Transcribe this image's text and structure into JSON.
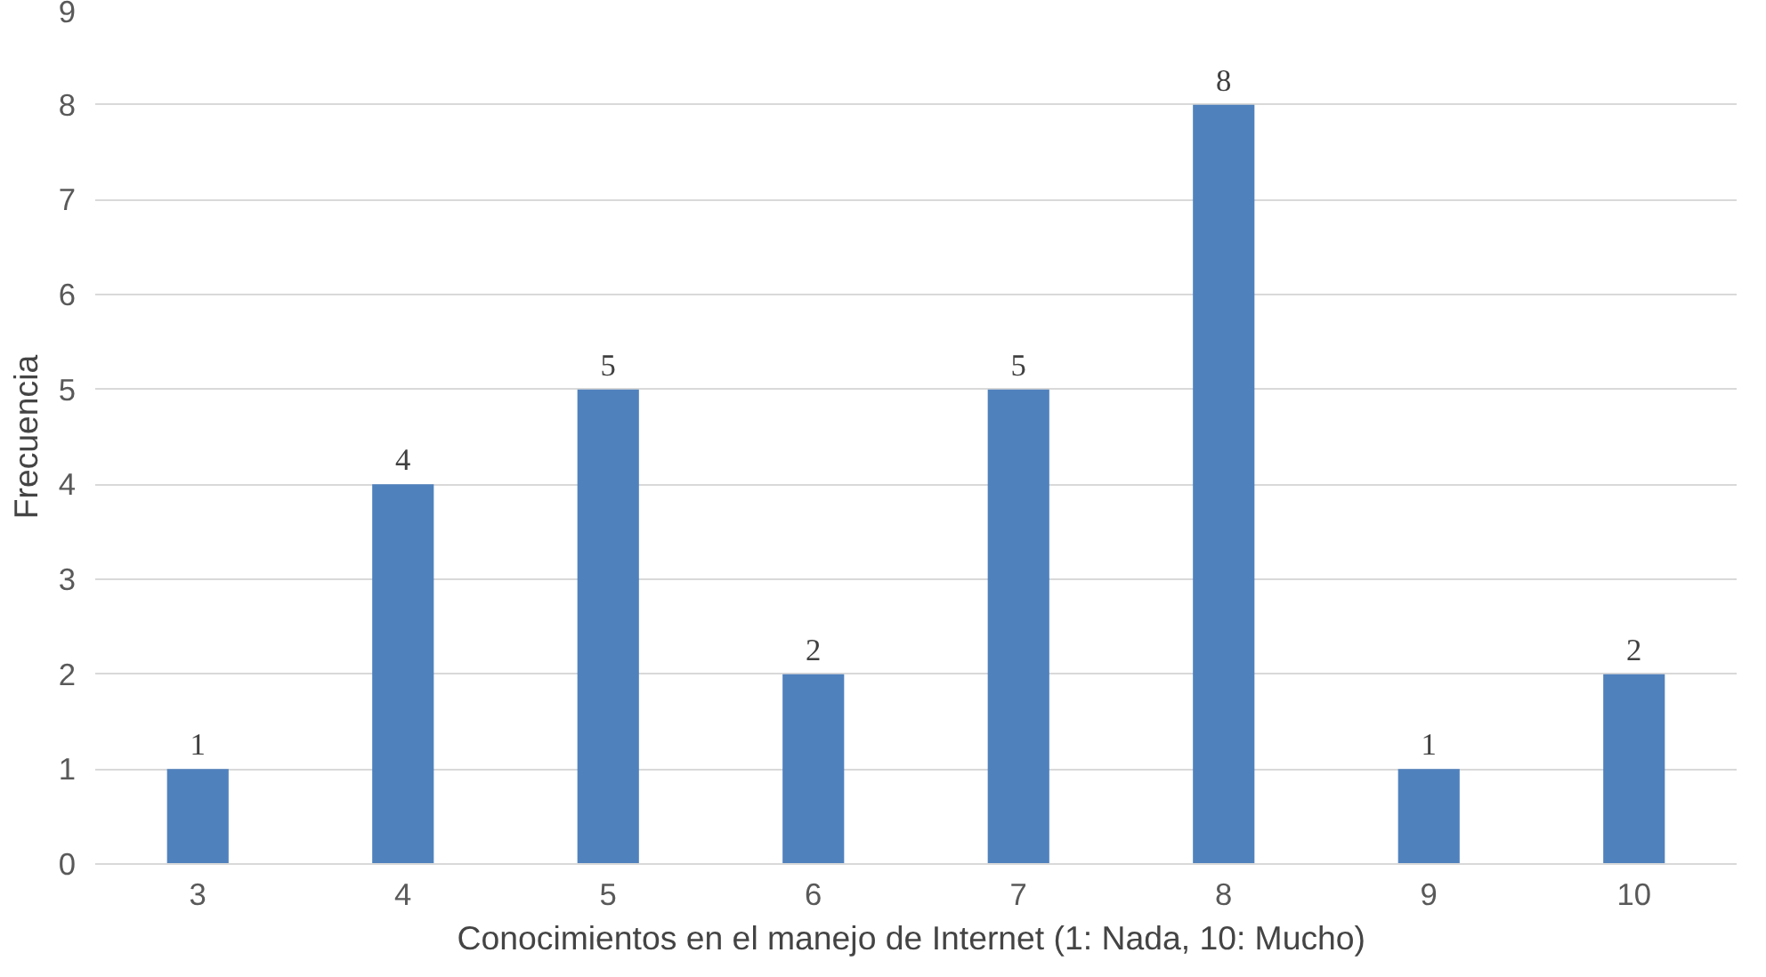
{
  "chart_data": {
    "type": "bar",
    "xlabel": "Conocimientos en el manejo de Internet  (1: Nada, 10: Mucho)",
    "ylabel": "Frecuencia",
    "categories": [
      "3",
      "4",
      "5",
      "6",
      "7",
      "8",
      "9",
      "10"
    ],
    "values": [
      1,
      4,
      5,
      2,
      5,
      8,
      1,
      2
    ],
    "color": "#4f81bd",
    "ylim": [
      0,
      9
    ],
    "yticks": [
      0,
      1,
      2,
      3,
      4,
      5,
      6,
      7,
      8,
      9
    ],
    "grid": "y",
    "data_labels": true
  }
}
